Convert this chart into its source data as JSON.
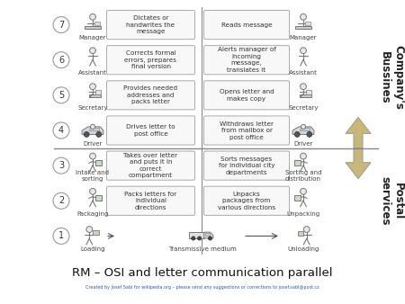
{
  "title": "RM – OSI and letter communication parallel",
  "subtitle": "Created by Josef Sabl for wikipedia.org – please send any suggestions or corrections to josef.sabl@post.cz",
  "background_color": "#ffffff",
  "company_label": "Company's\nBussines",
  "postal_label": "Postal\nservices",
  "layers": [
    {
      "num": 7,
      "left_icon": "manager",
      "left_label": "Manager",
      "left_action": "Dictates or\nhandwrites the\nmessage",
      "right_action": "Reads message",
      "right_icon": "manager",
      "right_label": "Manager"
    },
    {
      "num": 6,
      "left_icon": "person_stand",
      "left_label": "Assistant",
      "left_action": "Corrects formal\nerrors, prepares\nfinal version",
      "right_action": "Alerts manager of\nincoming\nmessage,\ntranslates it",
      "right_icon": "person_stand",
      "right_label": "Assistant"
    },
    {
      "num": 5,
      "left_icon": "secretary",
      "left_label": "Secretary",
      "left_action": "Provides needed\naddresses and\npacks letter",
      "right_action": "Opens letter and\nmakes copy",
      "right_icon": "secretary",
      "right_label": "Secretary"
    },
    {
      "num": 4,
      "left_icon": "driver",
      "left_label": "Driver",
      "left_action": "Drives letter to\npost office",
      "right_action": "Withdraws letter\nfrom mailbox or\npost office",
      "right_icon": "driver",
      "right_label": "Driver"
    },
    {
      "num": 3,
      "left_icon": "sorting",
      "left_label": "Intake and\nsorting",
      "left_action": "Takes over letter\nand puts it in\ncorrect\ncompartment",
      "right_action": "Sorts messages\nfor individual city\ndepartments",
      "right_icon": "sorting",
      "right_label": "Sorting and\ndistribution"
    },
    {
      "num": 2,
      "left_icon": "packaging",
      "left_label": "Packaging",
      "left_action": "Packs letters for\nindividual\ndirections",
      "right_action": "Unpacks\npackages from\nvarious directions",
      "right_icon": "packaging",
      "right_label": "Unpacking"
    },
    {
      "num": 1,
      "left_icon": "loading",
      "left_label": "Loading",
      "left_action": "Transmissive medium",
      "right_action": "",
      "right_icon": "unloading",
      "right_label": "Unloading"
    }
  ],
  "arrow_color": "#c8b878",
  "box_edge_color": "#aaaaaa",
  "box_fill_color": "#f8f8f8",
  "text_color": "#333333",
  "icon_color": "#777777",
  "icon_fill": "#dddddd"
}
